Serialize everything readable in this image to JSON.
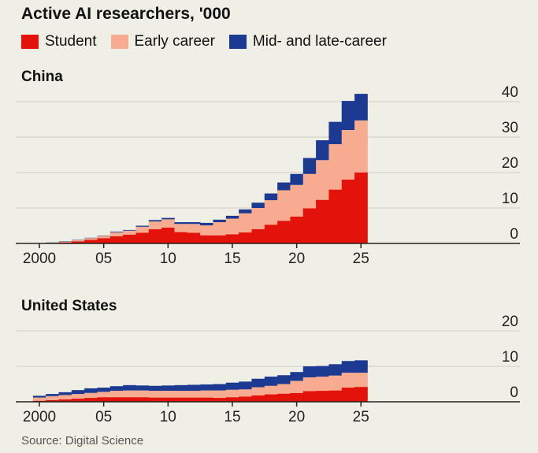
{
  "title": "Active AI researchers, '000",
  "legend": [
    {
      "label": "Student",
      "color": "#e3120b"
    },
    {
      "label": "Early career",
      "color": "#f7ab90"
    },
    {
      "label": "Mid- and late-career",
      "color": "#1d3a92"
    }
  ],
  "source": "Source: Digital Science",
  "chart_data": [
    {
      "type": "bar",
      "stacked": true,
      "title": "China",
      "x": [
        2000,
        2001,
        2002,
        2003,
        2004,
        2005,
        2006,
        2007,
        2008,
        2009,
        2010,
        2011,
        2012,
        2013,
        2014,
        2015,
        2016,
        2017,
        2018,
        2019,
        2020,
        2021,
        2022,
        2023,
        2024,
        2025
      ],
      "x_tick_labels": [
        "2000",
        "05",
        "10",
        "15",
        "20",
        "25"
      ],
      "x_ticks": [
        2000,
        2005,
        2010,
        2015,
        2020,
        2025
      ],
      "y_tick_labels": [
        "0",
        "10",
        "20",
        "30",
        "40"
      ],
      "ylim": [
        0,
        40
      ],
      "grid": true,
      "series": [
        {
          "name": "Student",
          "values": [
            0.05,
            0.15,
            0.3,
            0.6,
            1.0,
            1.5,
            2.0,
            2.5,
            3.0,
            4.0,
            4.5,
            3.2,
            3.0,
            2.3,
            2.3,
            2.6,
            3.1,
            4.0,
            5.3,
            6.4,
            7.6,
            9.9,
            12.3,
            15.2,
            18.0,
            20.0
          ]
        },
        {
          "name": "Early career",
          "values": [
            0.05,
            0.1,
            0.2,
            0.3,
            0.5,
            0.6,
            1.1,
            1.1,
            1.7,
            2.2,
            2.3,
            2.3,
            2.5,
            2.8,
            3.7,
            4.4,
            5.4,
            6.0,
            6.9,
            8.6,
            8.9,
            9.7,
            11.2,
            12.8,
            14.0,
            14.7
          ]
        },
        {
          "name": "Mid- and late-career",
          "values": [
            0,
            0.05,
            0.1,
            0.1,
            0.1,
            0.1,
            0.2,
            0.2,
            0.3,
            0.4,
            0.4,
            0.5,
            0.5,
            0.7,
            0.7,
            0.8,
            1.1,
            1.5,
            1.9,
            2.2,
            3.1,
            4.5,
            5.6,
            6.3,
            8.2,
            7.5
          ]
        }
      ]
    },
    {
      "type": "bar",
      "stacked": true,
      "title": "United States",
      "x": [
        2000,
        2001,
        2002,
        2003,
        2004,
        2005,
        2006,
        2007,
        2008,
        2009,
        2010,
        2011,
        2012,
        2013,
        2014,
        2015,
        2016,
        2017,
        2018,
        2019,
        2020,
        2021,
        2022,
        2023,
        2024,
        2025
      ],
      "x_tick_labels": [
        "2000",
        "05",
        "10",
        "15",
        "20",
        "25"
      ],
      "x_ticks": [
        2000,
        2005,
        2010,
        2015,
        2020,
        2025
      ],
      "y_tick_labels": [
        "0",
        "10",
        "20"
      ],
      "ylim": [
        0,
        20
      ],
      "grid": true,
      "series": [
        {
          "name": "Student",
          "values": [
            0.3,
            0.5,
            0.7,
            0.9,
            1.1,
            1.3,
            1.3,
            1.3,
            1.3,
            1.2,
            1.2,
            1.2,
            1.2,
            1.2,
            1.1,
            1.3,
            1.5,
            1.8,
            2.1,
            2.3,
            2.5,
            3.0,
            3.1,
            3.2,
            4.0,
            4.2
          ]
        },
        {
          "name": "Early career",
          "values": [
            0.9,
            1.1,
            1.2,
            1.3,
            1.4,
            1.5,
            1.8,
            1.9,
            1.9,
            1.9,
            1.9,
            1.9,
            1.9,
            2.0,
            2.1,
            2.1,
            2.0,
            2.3,
            2.4,
            2.7,
            3.4,
            3.9,
            4.0,
            4.2,
            4.2,
            4.0
          ]
        },
        {
          "name": "Mid- and late-career",
          "values": [
            0.5,
            0.6,
            0.8,
            1.1,
            1.3,
            1.2,
            1.3,
            1.5,
            1.4,
            1.4,
            1.5,
            1.6,
            1.7,
            1.7,
            1.8,
            2.0,
            2.2,
            2.4,
            2.6,
            2.5,
            2.5,
            3.1,
            3.0,
            3.2,
            3.3,
            3.5
          ]
        }
      ]
    }
  ]
}
